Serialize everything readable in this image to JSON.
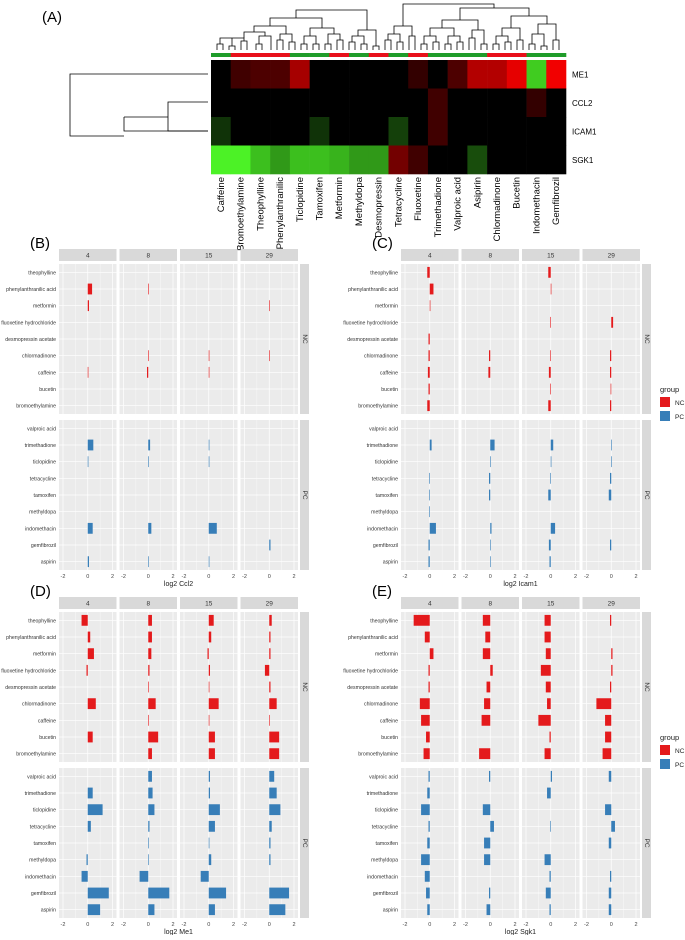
{
  "colors": {
    "nc": "#e41a1c",
    "pc": "#377eb8",
    "strip_bg": "#d9d9d9",
    "panel_bg": "#ebebeb",
    "heat_black": "#000000"
  },
  "legend": {
    "title": "group",
    "items": [
      "NC",
      "PC"
    ]
  },
  "chart_data": [
    {
      "panel": "(A)",
      "type": "heatmap",
      "rows": [
        "ME1",
        "CCL2",
        "ICAM1",
        "SGK1"
      ],
      "columns": [
        "Caffeine",
        "Bromoethylamine",
        "Theophylline",
        "Phenylanthranilic",
        "Ticlopidine",
        "Tamoxifen",
        "Metformin",
        "Methyldopa",
        "Desmopressin",
        "Tetracycline",
        "Fluoxetine",
        "Trimethadione",
        "Valproic acid",
        "Asipirin",
        "Chlormadinone",
        "Bucetin",
        "Indomethacin",
        "Gemfibrozil"
      ],
      "column_group": [
        "PC",
        "NC",
        "NC",
        "NC",
        "PC",
        "PC",
        "NC",
        "PC",
        "NC",
        "PC",
        "NC",
        "PC",
        "PC",
        "PC",
        "NC",
        "NC",
        "PC",
        "PC"
      ],
      "values": [
        [
          0.0,
          0.25,
          0.3,
          0.3,
          0.65,
          0.0,
          0.0,
          0.0,
          0.0,
          0.0,
          0.2,
          0.0,
          0.3,
          0.7,
          0.7,
          0.9,
          -0.8,
          0.95
        ],
        [
          0.0,
          0.0,
          0.0,
          0.0,
          0.0,
          0.0,
          0.0,
          0.0,
          0.0,
          0.0,
          0.0,
          0.25,
          0.0,
          0.0,
          0.0,
          0.0,
          0.2,
          0.0
        ],
        [
          -0.2,
          0.0,
          0.0,
          0.0,
          0.0,
          -0.2,
          0.0,
          0.0,
          0.0,
          -0.25,
          0.0,
          0.25,
          0.0,
          0.0,
          0.0,
          0.0,
          0.0,
          0.0
        ],
        [
          -0.95,
          -0.95,
          -0.75,
          -0.6,
          -0.75,
          -0.75,
          -0.7,
          -0.6,
          -0.6,
          0.45,
          0.25,
          0.0,
          0.0,
          -0.3,
          0.0,
          0.0,
          0.0,
          0.0
        ]
      ]
    },
    {
      "panel": "(B)",
      "type": "bar",
      "xlabel": "log2 Ccl2",
      "xlim": [
        -2,
        2
      ],
      "xticks": [
        -2,
        0,
        2
      ],
      "facets": [
        "4",
        "8",
        "15",
        "29"
      ],
      "groups": [
        {
          "name": "NC",
          "compounds": [
            "theophylline",
            "phenylanthranilic acid",
            "metformin",
            "fluoxetine hydrochloride",
            "desmopressin acetate",
            "chlormadinone",
            "caffeine",
            "bucetin",
            "bromoethylamine"
          ]
        },
        {
          "name": "PC",
          "compounds": [
            "valproic acid",
            "trimethadione",
            "ticlopidine",
            "tetracycline",
            "tamoxifen",
            "methyldopa",
            "indomethacin",
            "gemfibrozil",
            "aspirin"
          ]
        }
      ],
      "values": {
        "4": {
          "NC": [
            0,
            0.35,
            0.1,
            0,
            0,
            0,
            0.05,
            0,
            0
          ],
          "PC": [
            0,
            0.45,
            0.05,
            0,
            0,
            0,
            0.4,
            0,
            0.1
          ]
        },
        "8": {
          "NC": [
            0,
            0.05,
            0,
            0,
            0,
            0.05,
            -0.1,
            0,
            0
          ],
          "PC": [
            0,
            0.15,
            0.05,
            0,
            0,
            0,
            0.25,
            0,
            0.05
          ]
        },
        "15": {
          "NC": [
            0,
            0,
            0,
            0,
            0,
            0.05,
            0.05,
            0,
            0
          ],
          "PC": [
            0,
            0.05,
            0.05,
            0,
            0,
            0,
            0.65,
            0,
            0.05
          ]
        },
        "29": {
          "NC": [
            0,
            0,
            0.05,
            0,
            0,
            0.05,
            0,
            0,
            0
          ],
          "PC": [
            0,
            0,
            0,
            0,
            0,
            0,
            0,
            0.1,
            0
          ]
        }
      }
    },
    {
      "panel": "(C)",
      "type": "bar",
      "xlabel": "log2 Icam1",
      "xlim": [
        -2,
        2
      ],
      "xticks": [
        -2,
        0,
        2
      ],
      "facets": [
        "4",
        "8",
        "15",
        "29"
      ],
      "groups": [
        {
          "name": "NC",
          "compounds": [
            "theophylline",
            "phenylanthranilic acid",
            "metformin",
            "fluoxetine hydrochloride",
            "desmopressin acetate",
            "chlormadinone",
            "caffeine",
            "bucetin",
            "bromoethylamine"
          ]
        },
        {
          "name": "PC",
          "compounds": [
            "valproic acid",
            "trimethadione",
            "ticlopidine",
            "tetracycline",
            "tamoxifen",
            "methyldopa",
            "indomethacin",
            "gemfibrozil",
            "aspirin"
          ]
        }
      ],
      "values": {
        "4": {
          "NC": [
            -0.2,
            0.3,
            0.05,
            0,
            -0.1,
            -0.1,
            -0.15,
            -0.1,
            -0.2
          ],
          "PC": [
            0,
            0.15,
            0,
            -0.05,
            -0.05,
            -0.05,
            0.5,
            -0.1,
            -0.1
          ]
        },
        "8": {
          "NC": [
            0,
            0,
            0,
            0,
            0,
            -0.1,
            -0.15,
            0,
            0
          ],
          "PC": [
            0,
            0.35,
            0.05,
            -0.1,
            -0.1,
            0,
            0.1,
            0.05,
            0.05
          ]
        },
        "15": {
          "NC": [
            -0.2,
            0.05,
            0,
            -0.05,
            0,
            -0.05,
            -0.15,
            -0.05,
            -0.2
          ],
          "PC": [
            0,
            0.2,
            0.05,
            -0.05,
            -0.2,
            0,
            0.35,
            -0.15,
            -0.1
          ]
        },
        "29": {
          "NC": [
            0,
            0,
            0,
            0.15,
            0,
            -0.1,
            -0.1,
            -0.05,
            -0.1
          ],
          "PC": [
            0,
            0.05,
            0.05,
            -0.1,
            -0.2,
            0,
            0,
            -0.1,
            0
          ]
        }
      }
    },
    {
      "panel": "(D)",
      "type": "bar",
      "xlabel": "log2 Me1",
      "xlim": [
        -2,
        2
      ],
      "xticks": [
        -2,
        0,
        2
      ],
      "facets": [
        "4",
        "8",
        "15",
        "29"
      ],
      "groups": [
        {
          "name": "NC",
          "compounds": [
            "theophylline",
            "phenylanthranilic acid",
            "metformin",
            "fluoxetine hydrochloride",
            "desmopressin acetate",
            "chlormadinone",
            "caffeine",
            "bucetin",
            "bromoethylamine"
          ]
        },
        {
          "name": "PC",
          "compounds": [
            "valproic acid",
            "trimethadione",
            "ticlopidine",
            "tetracycline",
            "tamoxifen",
            "methyldopa",
            "indomethacin",
            "gemfibrozil",
            "aspirin"
          ]
        }
      ],
      "values": {
        "4": {
          "NC": [
            -0.5,
            0.2,
            0.5,
            -0.1,
            0,
            0.65,
            0,
            0.4,
            0
          ],
          "PC": [
            0,
            0.4,
            1.2,
            0.25,
            0,
            -0.1,
            -0.5,
            1.7,
            1.0
          ]
        },
        "8": {
          "NC": [
            0.3,
            0.3,
            0.25,
            0.1,
            0.05,
            0.6,
            0.05,
            0.8,
            0.3
          ],
          "PC": [
            0.3,
            0.35,
            0.5,
            0.1,
            0.05,
            0.05,
            -0.7,
            1.7,
            0.5
          ]
        },
        "15": {
          "NC": [
            0.4,
            0.2,
            -0.1,
            0.1,
            0.05,
            0.8,
            0.05,
            0.5,
            0.5
          ],
          "PC": [
            0.1,
            0.1,
            0.9,
            0.5,
            0.05,
            0.2,
            -0.65,
            1.4,
            0.5
          ]
        },
        "29": {
          "NC": [
            0.2,
            0.1,
            0.1,
            -0.35,
            0.1,
            0.6,
            0.05,
            0.8,
            0.8
          ],
          "PC": [
            0.4,
            0.6,
            0.9,
            0.2,
            0.1,
            0.1,
            0,
            1.6,
            1.3
          ]
        }
      }
    },
    {
      "panel": "(E)",
      "type": "bar",
      "xlabel": "log2 Sgk1",
      "xlim": [
        -2,
        2
      ],
      "xticks": [
        -2,
        0,
        2
      ],
      "facets": [
        "4",
        "8",
        "15",
        "29"
      ],
      "groups": [
        {
          "name": "NC",
          "compounds": [
            "theophylline",
            "phenylanthranilic acid",
            "metformin",
            "fluoxetine hydrochloride",
            "desmopressin acetate",
            "chlormadinone",
            "caffeine",
            "bucetin",
            "bromoethylamine"
          ]
        },
        {
          "name": "PC",
          "compounds": [
            "valproic acid",
            "trimethadione",
            "ticlopidine",
            "tetracycline",
            "tamoxifen",
            "methyldopa",
            "indomethacin",
            "gemfibrozil",
            "aspirin"
          ]
        }
      ],
      "values": {
        "4": {
          "NC": [
            -1.3,
            -0.4,
            0.3,
            -0.1,
            -0.1,
            -0.8,
            -0.7,
            -0.3,
            -0.5
          ],
          "PC": [
            -0.1,
            -0.2,
            -0.7,
            -0.1,
            -0.2,
            -0.7,
            -0.4,
            -0.3,
            -0.2
          ]
        },
        "8": {
          "NC": [
            -0.6,
            -0.4,
            -0.6,
            0.2,
            -0.3,
            -0.5,
            -0.7,
            0,
            -0.9
          ],
          "PC": [
            -0.1,
            0,
            -0.6,
            0.3,
            -0.5,
            -0.5,
            0,
            -0.1,
            -0.3
          ]
        },
        "15": {
          "NC": [
            -0.5,
            -0.5,
            -0.4,
            -0.8,
            -0.4,
            -0.3,
            -1.0,
            -0.1,
            -0.5
          ],
          "PC": [
            0.1,
            -0.3,
            0,
            -0.05,
            0,
            -0.5,
            -0.1,
            -0.4,
            -0.1
          ]
        },
        "29": {
          "NC": [
            -0.1,
            0,
            0.1,
            0.1,
            -0.1,
            -1.2,
            -0.5,
            -0.5,
            -0.7
          ],
          "PC": [
            -0.2,
            0,
            -0.5,
            0.3,
            -0.2,
            0,
            -0.1,
            -0.2,
            -0.2
          ]
        }
      }
    }
  ]
}
